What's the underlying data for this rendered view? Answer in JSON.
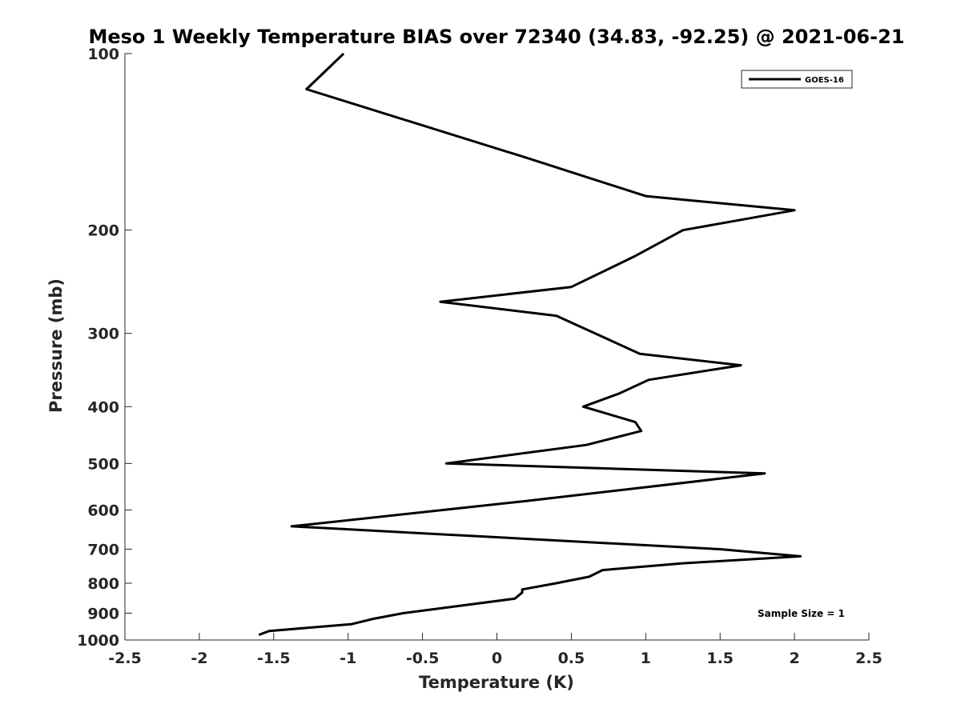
{
  "chart_data": {
    "type": "line",
    "title": "Meso 1 Weekly Temperature BIAS over 72340 (34.83, -92.25) @ 2021-06-21",
    "xlabel": "Temperature (K)",
    "ylabel": "Pressure (mb)",
    "xlim": [
      -2.5,
      2.5
    ],
    "ylim": [
      1000,
      100
    ],
    "y_scale": "log",
    "y_reversed": true,
    "x_ticks": [
      -2.5,
      -2,
      -1.5,
      -1,
      -0.5,
      0,
      0.5,
      1,
      1.5,
      2,
      2.5
    ],
    "x_tick_labels": [
      "-2.5",
      "-2",
      "-1.5",
      "-1",
      "-0.5",
      "0",
      "0.5",
      "1",
      "1.5",
      "2",
      "2.5"
    ],
    "y_ticks": [
      100,
      200,
      300,
      400,
      500,
      600,
      700,
      800,
      900,
      1000
    ],
    "y_tick_labels": [
      "100",
      "200",
      "300",
      "400",
      "500",
      "600",
      "700",
      "800",
      "900",
      "1000"
    ],
    "grid": false,
    "legend_position": "top-right",
    "series": [
      {
        "name": "GOES-16",
        "color": "#000000",
        "points": [
          [
            -1.03,
            100
          ],
          [
            -1.28,
            115
          ],
          [
            0.18,
            150
          ],
          [
            1.0,
            175
          ],
          [
            2.0,
            185
          ],
          [
            1.25,
            200
          ],
          [
            0.92,
            222
          ],
          [
            0.5,
            250
          ],
          [
            -0.38,
            265
          ],
          [
            0.4,
            280
          ],
          [
            0.66,
            300
          ],
          [
            0.96,
            325
          ],
          [
            1.64,
            340
          ],
          [
            1.02,
            360
          ],
          [
            0.82,
            380
          ],
          [
            0.58,
            400
          ],
          [
            0.93,
            425
          ],
          [
            0.97,
            440
          ],
          [
            0.6,
            465
          ],
          [
            -0.34,
            500
          ],
          [
            1.8,
            520
          ],
          [
            0.18,
            580
          ],
          [
            -1.38,
            640
          ],
          [
            1.5,
            700
          ],
          [
            2.04,
            720
          ],
          [
            1.25,
            740
          ],
          [
            0.71,
            760
          ],
          [
            0.62,
            780
          ],
          [
            0.4,
            800
          ],
          [
            0.17,
            820
          ],
          [
            0.17,
            830
          ],
          [
            0.12,
            850
          ],
          [
            -0.63,
            900
          ],
          [
            -0.83,
            920
          ],
          [
            -0.98,
            940
          ],
          [
            -1.53,
            965
          ],
          [
            -1.6,
            980
          ]
        ]
      }
    ],
    "annotation": "Sample Size = 1"
  }
}
